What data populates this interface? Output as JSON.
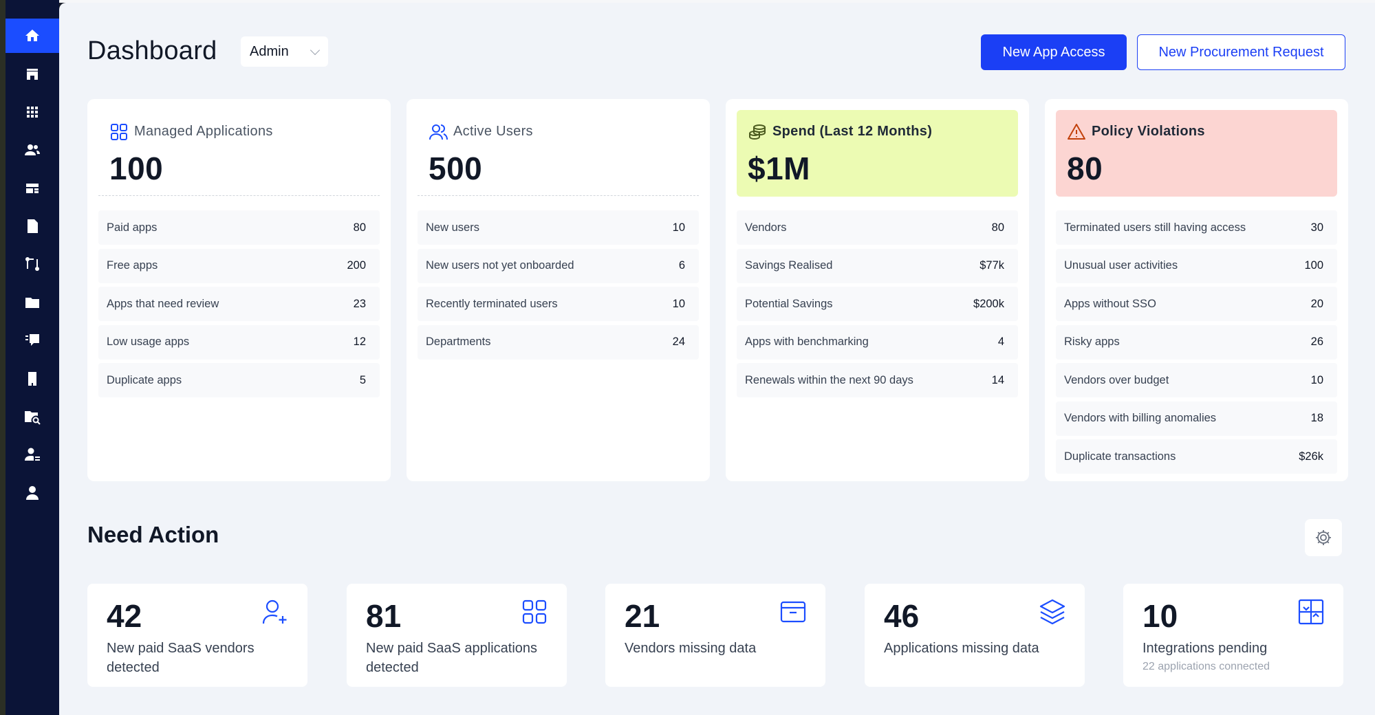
{
  "header": {
    "title": "Dashboard",
    "role": "Admin",
    "new_app_access": "New App Access",
    "new_procurement": "New Procurement Request"
  },
  "sidebar": {
    "items": [
      {
        "icon": "home-icon",
        "active": true
      },
      {
        "icon": "store-icon"
      },
      {
        "icon": "apps-grid-icon"
      },
      {
        "icon": "users-icon"
      },
      {
        "icon": "tickets-icon"
      },
      {
        "icon": "document-icon"
      },
      {
        "icon": "workflow-icon"
      },
      {
        "icon": "folder-icon"
      },
      {
        "icon": "feedback-icon"
      },
      {
        "icon": "building-icon"
      },
      {
        "icon": "folder-search-icon"
      },
      {
        "icon": "user-settings-icon"
      },
      {
        "icon": "account-icon"
      }
    ]
  },
  "cards": {
    "managed": {
      "label": "Managed Applications",
      "value": "100",
      "rows": [
        {
          "label": "Paid apps",
          "value": "80"
        },
        {
          "label": "Free apps",
          "value": "200"
        },
        {
          "label": "Apps that need review",
          "value": "23"
        },
        {
          "label": "Low usage apps",
          "value": "12"
        },
        {
          "label": "Duplicate apps",
          "value": "5"
        }
      ]
    },
    "users": {
      "label": "Active Users",
      "value": "500",
      "rows": [
        {
          "label": "New users",
          "value": "10"
        },
        {
          "label": "New users not yet onboarded",
          "value": "6"
        },
        {
          "label": "Recently terminated users",
          "value": "10"
        },
        {
          "label": "Departments",
          "value": "24"
        }
      ]
    },
    "spend": {
      "label": "Spend (Last 12 Months)",
      "value": "$1M",
      "rows": [
        {
          "label": "Vendors",
          "value": "80"
        },
        {
          "label": "Savings Realised",
          "value": "$77k"
        },
        {
          "label": "Potential Savings",
          "value": "$200k"
        },
        {
          "label": "Apps with benchmarking",
          "value": "4"
        },
        {
          "label": "Renewals within the next 90 days",
          "value": "14"
        }
      ]
    },
    "policy": {
      "label": "Policy Violations",
      "value": "80",
      "rows": [
        {
          "label": "Terminated users still having access",
          "value": "30"
        },
        {
          "label": "Unusual user activities",
          "value": "100"
        },
        {
          "label": "Apps without SSO",
          "value": "20"
        },
        {
          "label": "Risky apps",
          "value": "26"
        },
        {
          "label": "Vendors over budget",
          "value": "10"
        },
        {
          "label": "Vendors with billing anomalies",
          "value": "18"
        },
        {
          "label": "Duplicate transactions",
          "value": "$26k"
        }
      ]
    }
  },
  "need_action": {
    "title": "Need Action",
    "items": [
      {
        "value": "42",
        "label": "New paid SaaS vendors detected",
        "icon": "add-user-icon"
      },
      {
        "value": "81",
        "label": "New paid SaaS applications detected",
        "icon": "grid-icon"
      },
      {
        "value": "21",
        "label": "Vendors missing data",
        "icon": "archive-icon"
      },
      {
        "value": "46",
        "label": "Applications missing data",
        "icon": "layers-icon"
      },
      {
        "value": "10",
        "label": "Integrations pending",
        "sub": "22 applications connected",
        "icon": "integration-icon"
      }
    ]
  },
  "colors": {
    "sidebar": "#0b1437",
    "accent": "#1b3ff5",
    "spend_bg": "#ecfbb3",
    "violation_bg": "#fcd5d2",
    "icon_blue": "#1b4dff"
  }
}
